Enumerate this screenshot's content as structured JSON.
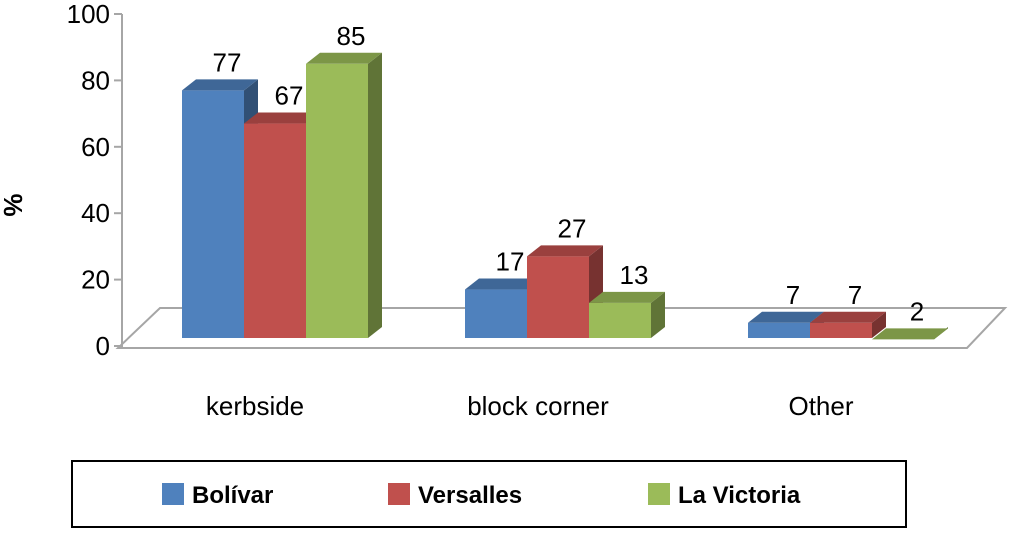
{
  "chart_data": {
    "type": "bar",
    "title": "",
    "xlabel": "",
    "ylabel": "%",
    "ylim": [
      0,
      100
    ],
    "yticks": [
      0,
      20,
      40,
      60,
      80,
      100
    ],
    "categories": [
      "kerbside",
      "block corner",
      "Other"
    ],
    "series": [
      {
        "name": "Bolívar",
        "values": [
          77,
          17,
          7
        ],
        "color": "#4f81bd"
      },
      {
        "name": "Versalles",
        "values": [
          67,
          27,
          7
        ],
        "color": "#c0504d"
      },
      {
        "name": "La Victoria",
        "values": [
          85,
          13,
          2
        ],
        "color": "#9bbb59"
      }
    ],
    "legend_position": "bottom",
    "three_d": true,
    "grid": false
  }
}
